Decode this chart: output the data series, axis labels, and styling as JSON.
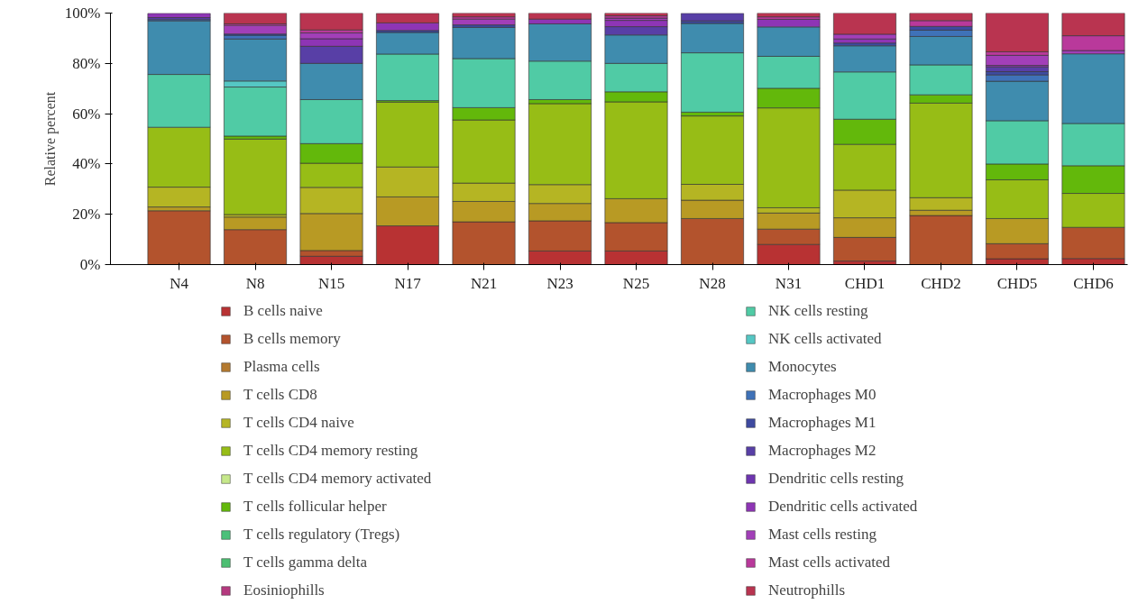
{
  "chart_data": {
    "type": "bar",
    "stacked": true,
    "ylabel": "Relative percent",
    "categories": [
      "N4",
      "N8",
      "N15",
      "N17",
      "N21",
      "N23",
      "N25",
      "N28",
      "N31",
      "CHD1",
      "CHD2",
      "CHD5",
      "CHD6"
    ],
    "ylim": [
      0,
      100
    ],
    "yticks": [
      {
        "value": 0,
        "label": "0%"
      },
      {
        "value": 20,
        "label": "20%"
      },
      {
        "value": 40,
        "label": "40%"
      },
      {
        "value": 60,
        "label": "60%"
      },
      {
        "value": 80,
        "label": "80%"
      },
      {
        "value": 100,
        "label": "100%"
      }
    ],
    "grid": false,
    "legend": "bottom",
    "series": [
      {
        "name": "B cells naive",
        "color": "#b83233",
        "values": [
          0,
          0,
          3.3,
          15.4,
          0,
          5.4,
          5.4,
          0,
          8.0,
          1.4,
          0,
          2.3,
          2.4
        ]
      },
      {
        "name": "B cells memory",
        "color": "#b3532d",
        "values": [
          21.4,
          13.9,
          2.3,
          0,
          17.0,
          12.0,
          11.3,
          18.3,
          6.1,
          9.4,
          19.5,
          6.0,
          12.4
        ]
      },
      {
        "name": "Plasma cells",
        "color": "#b47a30",
        "values": [
          0,
          0,
          0,
          0,
          0,
          0,
          0,
          0,
          0,
          0,
          0,
          0,
          0
        ]
      },
      {
        "name": "T cells CD8",
        "color": "#b89a24",
        "values": [
          1.5,
          5.0,
          14.7,
          11.5,
          8.1,
          6.9,
          9.5,
          7.3,
          6.4,
          7.8,
          2.1,
          10.0,
          0
        ]
      },
      {
        "name": "T cells CD4 naive",
        "color": "#b5b523",
        "values": [
          7.9,
          1.0,
          10.4,
          11.9,
          7.3,
          7.5,
          0,
          6.3,
          2.1,
          11.0,
          5.0,
          0,
          0
        ]
      },
      {
        "name": "T cells CD4 memory resting",
        "color": "#97bd16",
        "values": [
          23.8,
          30.0,
          9.6,
          25.8,
          25.1,
          32.2,
          38.5,
          27.2,
          39.7,
          18.2,
          37.6,
          15.4,
          13.5
        ]
      },
      {
        "name": "T cells CD4 memory activated",
        "color": "#c6e88a",
        "values": [
          0,
          0,
          0,
          0,
          0,
          0,
          0,
          0,
          0,
          0,
          0,
          0,
          0
        ]
      },
      {
        "name": "T cells follicular helper",
        "color": "#63b80b",
        "values": [
          0,
          1.2,
          7.8,
          0.6,
          4.9,
          1.6,
          4.0,
          1.5,
          7.8,
          10.0,
          3.3,
          6.3,
          11.0
        ]
      },
      {
        "name": "T cells regulatory (Tregs)",
        "color": "#4cc07a",
        "values": [
          0,
          0,
          0,
          0,
          0,
          0,
          0,
          0,
          0,
          0,
          0,
          0,
          0
        ]
      },
      {
        "name": "T cells gamma delta",
        "color": "#4cbf72",
        "values": [
          0,
          0,
          0,
          0,
          0,
          0,
          0,
          0,
          0,
          0,
          0,
          0,
          0
        ]
      },
      {
        "name": "Eosiniophills",
        "color": "#b5397f",
        "values": [
          0,
          0,
          0,
          0,
          0,
          0,
          0,
          0,
          0,
          0,
          0,
          0,
          0
        ]
      },
      {
        "name": "NK cells resting",
        "color": "#50cba5",
        "values": [
          21.0,
          19.5,
          17.5,
          18.5,
          19.5,
          15.3,
          11.3,
          23.6,
          12.7,
          18.8,
          11.9,
          17.2,
          16.8
        ]
      },
      {
        "name": "NK cells activated",
        "color": "#55c7c4",
        "values": [
          0,
          2.4,
          0,
          0,
          0,
          0,
          0,
          0,
          0,
          0,
          0,
          0,
          0
        ]
      },
      {
        "name": "Monocytes",
        "color": "#3f8cae",
        "values": [
          21.3,
          16.7,
          14.4,
          8.6,
          12.4,
          14.8,
          11.3,
          11.7,
          11.7,
          10.4,
          11.3,
          15.7,
          27.7
        ]
      },
      {
        "name": "Macrophages M0",
        "color": "#3f72b8",
        "values": [
          0.5,
          1.5,
          0,
          0,
          0,
          0,
          0,
          0,
          0,
          0,
          2.5,
          2.5,
          0
        ]
      },
      {
        "name": "Macrophages M1",
        "color": "#3e4aa0",
        "values": [
          0,
          0.5,
          0,
          0.8,
          1.0,
          0,
          0,
          1.0,
          0,
          1.1,
          1.5,
          1.3,
          0
        ]
      },
      {
        "name": "Macrophages M2",
        "color": "#583fa6",
        "values": [
          0.8,
          0,
          6.8,
          0,
          0,
          0,
          3.3,
          3.0,
          0,
          0,
          0,
          1.9,
          0
        ]
      },
      {
        "name": "Dendritic cells resting",
        "color": "#6e35b0",
        "values": [
          0,
          0,
          0,
          0,
          0,
          0,
          0,
          0,
          0,
          0,
          0,
          0,
          0
        ]
      },
      {
        "name": "Dendritic cells activated",
        "color": "#8e35b5",
        "values": [
          1.7,
          0,
          3.0,
          3.0,
          0,
          1.9,
          2.5,
          0,
          3.0,
          1.6,
          0,
          0.6,
          0
        ]
      },
      {
        "name": "Mast cells resting",
        "color": "#a23fb8",
        "values": [
          0,
          3.4,
          2.3,
          0,
          2.3,
          0,
          0.9,
          0,
          0,
          1.9,
          0,
          4.0,
          1.3
        ]
      },
      {
        "name": "Mast cells activated",
        "color": "#b9399b",
        "values": [
          0,
          0.6,
          1.2,
          0,
          0.9,
          0,
          0.9,
          0,
          1.0,
          0,
          2.3,
          1.4,
          5.9
        ]
      },
      {
        "name": "Neutrophills",
        "color": "#b93450",
        "values": [
          0,
          4.3,
          6.8,
          3.8,
          1.5,
          2.4,
          1.1,
          0,
          1.5,
          8.4,
          3.0,
          15.4,
          9.0
        ]
      }
    ]
  }
}
